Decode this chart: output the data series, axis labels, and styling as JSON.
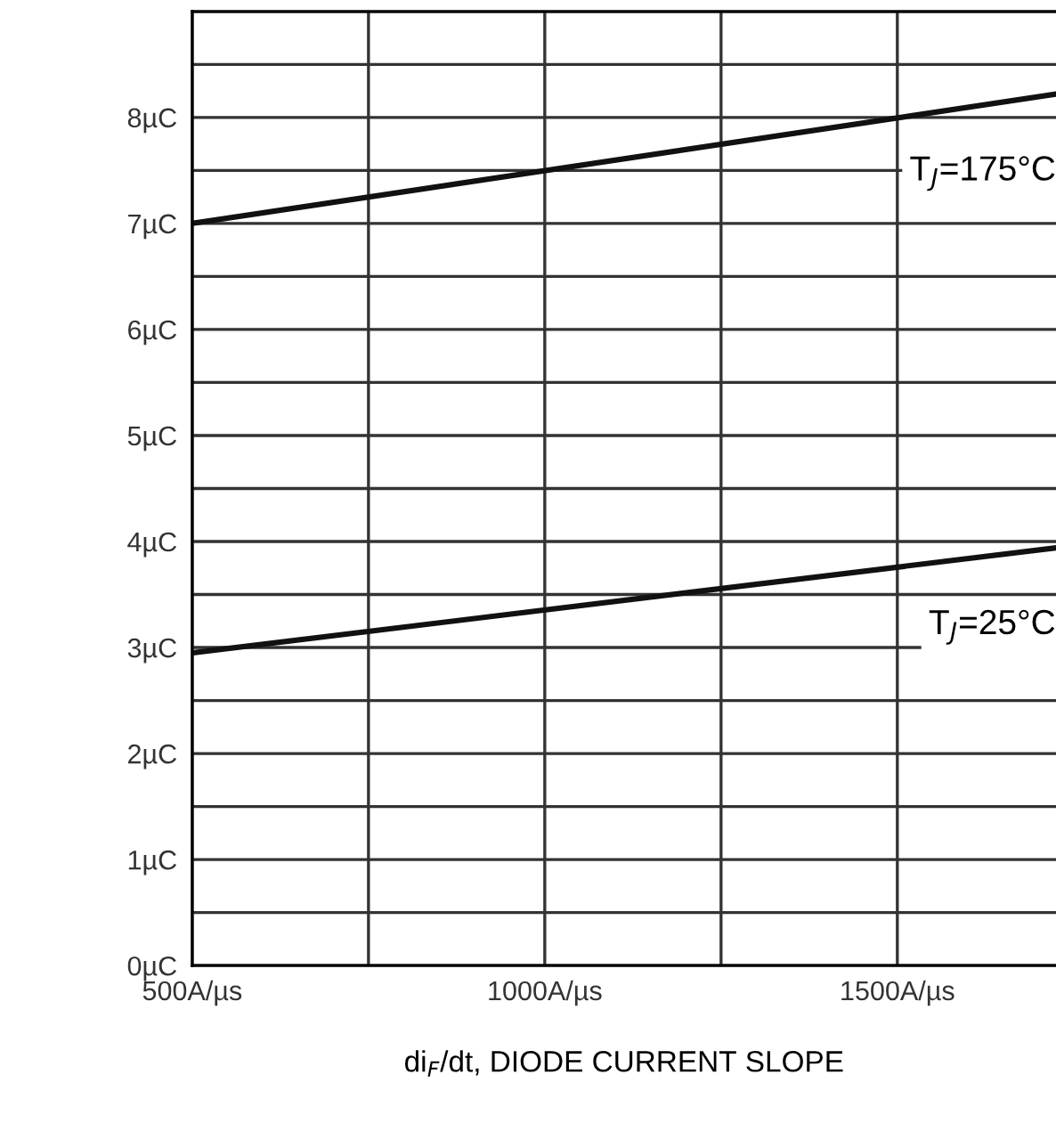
{
  "chart_data": {
    "type": "line",
    "xlabel": "di$_{F}$/dt, DIODE CURRENT SLOPE",
    "x": [
      500,
      1725
    ],
    "series": [
      {
        "name": "T$_{J}$=175°C",
        "color": "#111111",
        "values": [
          7.0,
          8.22
        ]
      },
      {
        "name": "T$_{J}$=25°C",
        "color": "#111111",
        "values": [
          2.95,
          3.94
        ]
      }
    ],
    "xlim": [
      500,
      1725
    ],
    "xticks": [
      {
        "value": 500,
        "label": "500A/µs"
      },
      {
        "value": 750,
        "label": null
      },
      {
        "value": 1000,
        "label": "1000A/µs"
      },
      {
        "value": 1250,
        "label": null
      },
      {
        "value": 1500,
        "label": "1500A/µs"
      }
    ],
    "ylim": [
      0,
      9
    ],
    "yticks": [
      {
        "value": 0,
        "label": "0µC"
      },
      {
        "value": 0.5,
        "label": null
      },
      {
        "value": 1,
        "label": "1µC"
      },
      {
        "value": 1.5,
        "label": null
      },
      {
        "value": 2,
        "label": "2µC"
      },
      {
        "value": 2.5,
        "label": null
      },
      {
        "value": 3,
        "label": "3µC"
      },
      {
        "value": 3.5,
        "label": null
      },
      {
        "value": 4,
        "label": "4µC"
      },
      {
        "value": 4.5,
        "label": null
      },
      {
        "value": 5,
        "label": "5µC"
      },
      {
        "value": 5.5,
        "label": null
      },
      {
        "value": 6,
        "label": "6µC"
      },
      {
        "value": 6.5,
        "label": null
      },
      {
        "value": 7,
        "label": "7µC"
      },
      {
        "value": 7.5,
        "label": null
      },
      {
        "value": 8,
        "label": "8µC"
      },
      {
        "value": 8.5,
        "label": null
      },
      {
        "value": 9,
        "label": null
      }
    ],
    "grid": true,
    "marker": "none",
    "line_style": "solid"
  }
}
